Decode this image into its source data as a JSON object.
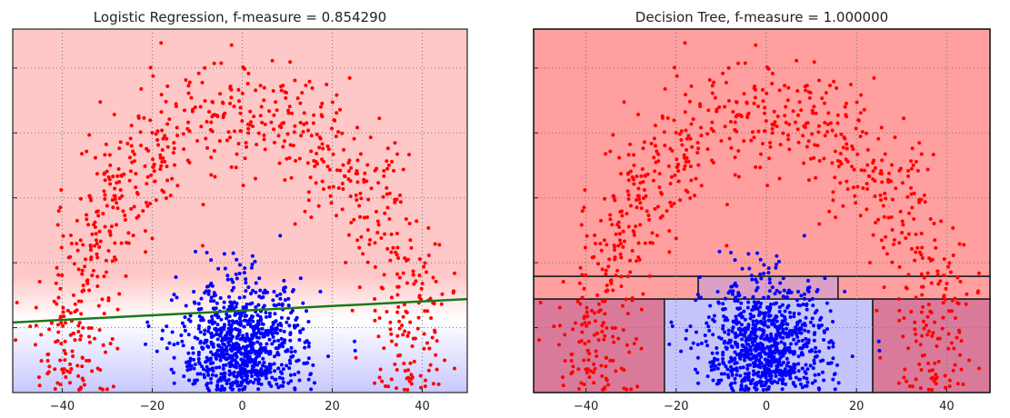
{
  "chart_data": [
    {
      "type": "scatter",
      "title": "Logistic Regression, f-measure = 0.854290",
      "xlim": [
        -51,
        50
      ],
      "ylim": [
        0,
        56
      ],
      "xticks": [
        -40,
        -20,
        0,
        20,
        40
      ],
      "xtick_labels": [
        "−40",
        "−20",
        "0",
        "20",
        "40"
      ],
      "yticks": [
        10,
        20,
        30,
        40,
        50
      ],
      "grid": true,
      "decision_boundary": {
        "type": "line",
        "x": [
          -51,
          50
        ],
        "y": [
          10.8,
          14.4
        ],
        "color": "#1a7a1a"
      },
      "background": {
        "class_red": "#ffc8c8",
        "class_blue": "#c8c8ff"
      }
    },
    {
      "type": "scatter",
      "title": "Decision Tree, f-measure = 1.000000",
      "xlim": [
        -51.6,
        49.6
      ],
      "ylim": [
        0,
        56
      ],
      "xticks": [
        -40,
        -20,
        0,
        20,
        40
      ],
      "xtick_labels": [
        "−40",
        "−20",
        "0",
        "20",
        "40"
      ],
      "yticks": [
        10,
        20,
        30,
        40,
        50
      ],
      "grid": true,
      "regions": [
        {
          "x": [
            -51.6,
            49.6
          ],
          "y": [
            17.9,
            56
          ],
          "color": "#ff9f9f"
        },
        {
          "x": [
            -51.6,
            -15.1
          ],
          "y": [
            14.4,
            17.9
          ],
          "color": "#ff9f9f"
        },
        {
          "x": [
            -15.1,
            15.9
          ],
          "y": [
            14.4,
            17.9
          ],
          "color": "#dca0c4"
        },
        {
          "x": [
            15.9,
            49.6
          ],
          "y": [
            14.4,
            17.9
          ],
          "color": "#ff9f9f"
        },
        {
          "x": [
            -51.6,
            -22.6
          ],
          "y": [
            0,
            14.4
          ],
          "color": "#d97a9a"
        },
        {
          "x": [
            -22.6,
            23.6
          ],
          "y": [
            0,
            14.4
          ],
          "color": "#c5c5fb"
        },
        {
          "x": [
            23.6,
            49.6
          ],
          "y": [
            0,
            14.4
          ],
          "color": "#d97a9a"
        }
      ]
    }
  ],
  "datasets": {
    "red": {
      "color": "#ff0000",
      "shape": "arc",
      "center": [
        0,
        5
      ],
      "radius": 38,
      "noise": 5,
      "count": 850
    },
    "blue": {
      "color": "#0000ff",
      "shape": "gaussian",
      "mean": [
        0,
        6
      ],
      "std": [
        7,
        5.5
      ],
      "count": 1000
    }
  }
}
